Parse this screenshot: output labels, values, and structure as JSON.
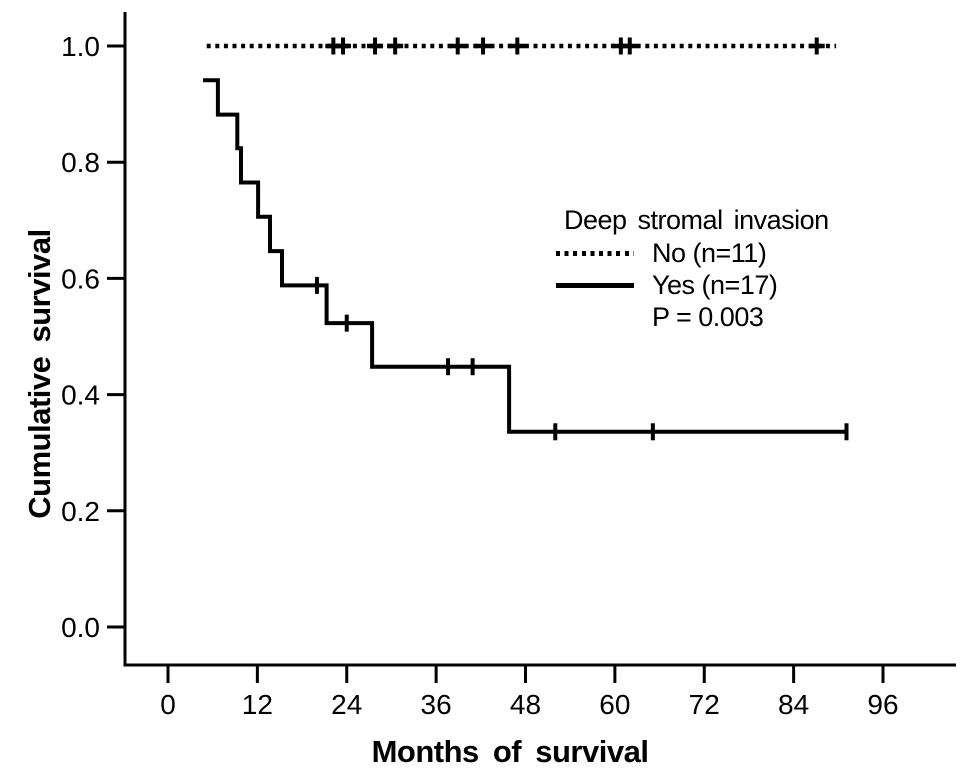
{
  "figure": {
    "background": "#ffffff",
    "ink_color": "#000000"
  },
  "chart_data": {
    "type": "line",
    "subtype": "kaplan-meier-step",
    "title": "",
    "xlabel": "Months of survival",
    "ylabel": "Cumulative survival",
    "xlim": [
      0,
      96
    ],
    "ylim": [
      0.0,
      1.0
    ],
    "grid": false,
    "x_ticks": [
      {
        "value": 0,
        "label": "0"
      },
      {
        "value": 12,
        "label": "12"
      },
      {
        "value": 24,
        "label": "24"
      },
      {
        "value": 36,
        "label": "36"
      },
      {
        "value": 48,
        "label": "48"
      },
      {
        "value": 60,
        "label": "60"
      },
      {
        "value": 72,
        "label": "72"
      },
      {
        "value": 84,
        "label": "84"
      },
      {
        "value": 96,
        "label": "96"
      }
    ],
    "y_ticks": [
      {
        "value": 0.0,
        "label": "0.0"
      },
      {
        "value": 0.2,
        "label": "0.2"
      },
      {
        "value": 0.4,
        "label": "0.4"
      },
      {
        "value": 0.6,
        "label": "0.6"
      },
      {
        "value": 0.8,
        "label": "0.8"
      },
      {
        "value": 1.0,
        "label": "1.0"
      }
    ],
    "legend": {
      "position": "inside-upper-right",
      "title": "Deep stromal invasion",
      "entries": [
        {
          "label": "No (n=11)",
          "line_style": "dotted"
        },
        {
          "label": "Yes (n=17)",
          "line_style": "solid"
        }
      ],
      "note": "P = 0.003"
    },
    "p_value": "P = 0.003",
    "series": [
      {
        "name": "No (n=11)",
        "group": "Deep stromal invasion: No",
        "n": 11,
        "line_style": "dotted",
        "step_points": [
          [
            5.2,
            1.0
          ],
          [
            89.7,
            1.0
          ]
        ],
        "censor_marks": [
          [
            22.2,
            1.0
          ],
          [
            23.5,
            1.0
          ],
          [
            27.8,
            1.0
          ],
          [
            30.5,
            1.0
          ],
          [
            38.9,
            1.0
          ],
          [
            42.3,
            1.0
          ],
          [
            46.9,
            1.0
          ],
          [
            60.8,
            1.0
          ],
          [
            62.0,
            1.0
          ],
          [
            87.1,
            1.0
          ]
        ]
      },
      {
        "name": "Yes (n=17)",
        "group": "Deep stromal invasion: Yes",
        "n": 17,
        "line_style": "solid",
        "step_points": [
          [
            4.7,
            0.941
          ],
          [
            6.7,
            0.941
          ],
          [
            6.7,
            0.882
          ],
          [
            9.3,
            0.882
          ],
          [
            9.3,
            0.824
          ],
          [
            9.8,
            0.824
          ],
          [
            9.8,
            0.765
          ],
          [
            12.1,
            0.765
          ],
          [
            12.1,
            0.706
          ],
          [
            13.7,
            0.706
          ],
          [
            13.7,
            0.647
          ],
          [
            15.3,
            0.647
          ],
          [
            15.3,
            0.588
          ],
          [
            21.3,
            0.588
          ],
          [
            21.3,
            0.523
          ],
          [
            27.4,
            0.523
          ],
          [
            27.4,
            0.448
          ],
          [
            45.8,
            0.448
          ],
          [
            45.8,
            0.336
          ],
          [
            91.3,
            0.336
          ]
        ],
        "censor_marks": [
          [
            20.0,
            0.588
          ],
          [
            24.0,
            0.523
          ],
          [
            37.6,
            0.448
          ],
          [
            40.9,
            0.448
          ],
          [
            52.0,
            0.336
          ],
          [
            65.1,
            0.336
          ],
          [
            91.1,
            0.336
          ]
        ]
      }
    ]
  }
}
